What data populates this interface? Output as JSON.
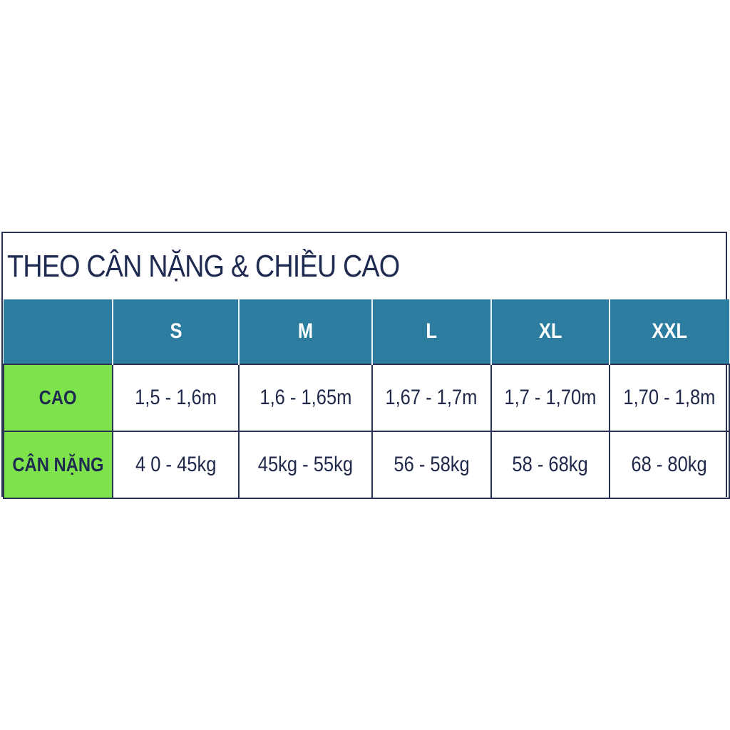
{
  "title": "THEO CÂN NẶNG & CHIỀU CAO",
  "colors": {
    "header_bg": "#2c7da0",
    "label_bg": "#7ee24a",
    "text": "#1f2a50"
  },
  "table": {
    "header": [
      "",
      "S",
      "M",
      "L",
      "XL",
      "XXL"
    ],
    "rows": [
      {
        "label": "CAO",
        "values": [
          "1,5 - 1,6m",
          "1,6 - 1,65m",
          "1,67 - 1,7m",
          "1,7 - 1,70m",
          "1,70 - 1,8m"
        ]
      },
      {
        "label": "CÂN NẶNG",
        "values": [
          "4 0 - 45kg",
          "45kg - 55kg",
          "56 - 58kg",
          "58 - 68kg",
          "68 - 80kg"
        ]
      }
    ]
  }
}
